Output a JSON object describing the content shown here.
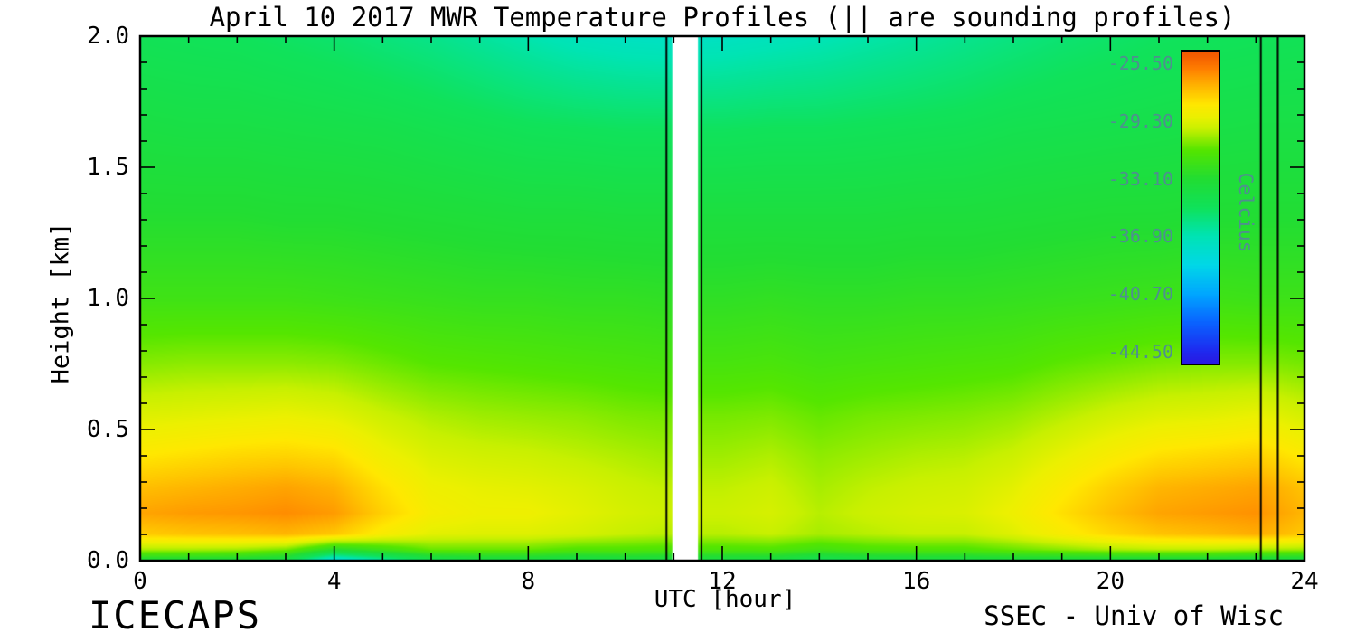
{
  "axes": {
    "x_tick_labels": [
      "0",
      "4",
      "8",
      "12",
      "16",
      "20",
      "24"
    ],
    "x_tick_values": [
      0,
      4,
      8,
      12,
      16,
      20,
      24
    ],
    "x_minor_step": 1,
    "x_range": [
      0,
      24
    ],
    "y_tick_labels": [
      "0.0",
      "0.5",
      "1.0",
      "1.5",
      "2.0"
    ],
    "y_tick_values": [
      0,
      0.5,
      1.0,
      1.5,
      2.0
    ],
    "y_minor_step": 0.1,
    "y_range": [
      0,
      2
    ]
  },
  "colorbar": {
    "unit_label": "Celcius",
    "tick_labels": [
      "-25.50",
      "-29.30",
      "-33.10",
      "-36.90",
      "-40.70",
      "-44.50"
    ],
    "tick_values": [
      -25.5,
      -29.3,
      -33.1,
      -36.9,
      -40.7,
      -44.5
    ],
    "top_value": -24.7,
    "bottom_value": -45.3,
    "text_color": "#4f8f8f"
  },
  "annotations": {
    "footer_left": "ICECAPS",
    "footer_right": "SSEC - Univ of Wisc"
  },
  "sounding_lines_hours": [
    10.85,
    11.57,
    23.1,
    23.45
  ],
  "data_gap_hours": [
    10.97,
    11.5
  ],
  "colormap_stops": [
    [
      -46.5,
      "#3a00d0"
    ],
    [
      -44.5,
      "#1f2bf0"
    ],
    [
      -42.6,
      "#0a64ff"
    ],
    [
      -40.7,
      "#00a8ff"
    ],
    [
      -38.8,
      "#00d8e8"
    ],
    [
      -36.9,
      "#00e4b4"
    ],
    [
      -35.0,
      "#10e25a"
    ],
    [
      -33.1,
      "#22dd33"
    ],
    [
      -31.2,
      "#55e600"
    ],
    [
      -29.8,
      "#c8f000"
    ],
    [
      -29.0,
      "#ecf000"
    ],
    [
      -28.2,
      "#ffe800"
    ],
    [
      -27.3,
      "#ffc400"
    ],
    [
      -26.5,
      "#ffa000"
    ],
    [
      -25.8,
      "#ff7e00"
    ],
    [
      -25.0,
      "#f55f00"
    ],
    [
      -23.8,
      "#e54200"
    ]
  ],
  "chart_data": {
    "type": "heatmap",
    "title": "April 10 2017 MWR Temperature Profiles (|| are sounding profiles)",
    "xlabel": "UTC [hour]",
    "ylabel": "Height [km]",
    "units": "Celcius",
    "xlim": [
      0,
      24
    ],
    "ylim": [
      0,
      2
    ],
    "value_range": [
      -44.5,
      -25.5
    ],
    "x_hours": [
      0,
      1,
      2,
      3,
      4,
      5,
      6,
      7,
      8,
      9,
      10,
      11,
      12,
      13,
      14,
      15,
      16,
      17,
      18,
      19,
      20,
      21,
      22,
      23,
      24
    ],
    "heights_km": [
      0.0,
      0.04,
      0.1,
      0.18,
      0.28,
      0.4,
      0.55,
      0.75,
      1.0,
      1.3,
      1.65,
      2.0
    ],
    "temps_c": [
      [
        -33.5,
        -33.5,
        -33.6,
        -34.2,
        -38.5,
        -36.5,
        -34.5,
        -34.0,
        -34.0,
        -34.3,
        -34.0,
        -34.0,
        -34.0,
        -34.0,
        -34.8,
        -34.3,
        -34.0,
        -34.0,
        -33.8,
        -33.8,
        -33.8,
        -33.8,
        -33.8,
        -34.0,
        -34.0
      ],
      [
        -30.2,
        -30.2,
        -30.3,
        -30.8,
        -33.0,
        -32.0,
        -31.0,
        -31.0,
        -31.0,
        -31.4,
        -31.4,
        -31.5,
        -31.5,
        -31.4,
        -31.9,
        -31.5,
        -31.4,
        -31.4,
        -31.0,
        -30.6,
        -30.2,
        -30.0,
        -30.0,
        -30.2,
        -30.3
      ],
      [
        -27.5,
        -27.3,
        -27.2,
        -27.0,
        -27.4,
        -28.5,
        -29.2,
        -29.3,
        -29.3,
        -29.5,
        -29.8,
        -30.0,
        -30.0,
        -29.8,
        -30.2,
        -30.0,
        -29.8,
        -29.8,
        -29.3,
        -28.5,
        -27.8,
        -27.3,
        -27.1,
        -26.8,
        -27.4
      ],
      [
        -26.6,
        -26.4,
        -26.3,
        -26.1,
        -26.4,
        -27.6,
        -28.6,
        -28.9,
        -28.9,
        -29.2,
        -29.5,
        -29.7,
        -29.7,
        -29.5,
        -30.0,
        -29.7,
        -29.5,
        -29.4,
        -28.9,
        -28.0,
        -27.2,
        -26.6,
        -26.4,
        -26.2,
        -27.0
      ],
      [
        -27.2,
        -27.0,
        -26.8,
        -26.6,
        -26.9,
        -28.0,
        -28.9,
        -29.1,
        -29.2,
        -29.4,
        -29.7,
        -29.9,
        -29.9,
        -29.7,
        -30.2,
        -29.9,
        -29.7,
        -29.6,
        -29.2,
        -28.4,
        -27.6,
        -27.0,
        -26.8,
        -26.6,
        -27.3
      ],
      [
        -28.2,
        -28.0,
        -27.8,
        -27.7,
        -27.9,
        -28.8,
        -29.4,
        -29.6,
        -29.7,
        -29.9,
        -30.1,
        -30.3,
        -30.3,
        -30.1,
        -30.5,
        -30.3,
        -30.1,
        -30.0,
        -29.7,
        -29.1,
        -28.5,
        -28.0,
        -27.8,
        -27.6,
        -28.3
      ],
      [
        -29.3,
        -29.2,
        -29.1,
        -29.0,
        -29.2,
        -29.7,
        -30.1,
        -30.3,
        -30.4,
        -30.5,
        -30.7,
        -30.8,
        -30.8,
        -30.7,
        -31.0,
        -30.8,
        -30.7,
        -30.6,
        -30.4,
        -30.0,
        -29.6,
        -29.3,
        -29.2,
        -29.0,
        -29.5
      ],
      [
        -30.6,
        -30.5,
        -30.5,
        -30.5,
        -30.6,
        -30.9,
        -31.2,
        -31.3,
        -31.4,
        -31.5,
        -31.6,
        -31.7,
        -31.7,
        -31.6,
        -31.8,
        -31.7,
        -31.6,
        -31.5,
        -31.4,
        -31.1,
        -30.9,
        -30.7,
        -30.6,
        -30.6,
        -30.8
      ],
      [
        -32.0,
        -32.0,
        -32.0,
        -32.0,
        -32.1,
        -32.2,
        -32.3,
        -32.4,
        -32.4,
        -32.5,
        -32.5,
        -32.6,
        -32.6,
        -32.5,
        -32.6,
        -32.6,
        -32.5,
        -32.5,
        -32.4,
        -32.3,
        -32.2,
        -32.1,
        -32.0,
        -32.1,
        -32.1
      ],
      [
        -33.0,
        -33.0,
        -33.0,
        -33.1,
        -33.1,
        -33.2,
        -33.3,
        -33.4,
        -33.5,
        -33.5,
        -33.6,
        -33.6,
        -33.6,
        -33.6,
        -33.6,
        -33.6,
        -33.5,
        -33.5,
        -33.4,
        -33.3,
        -33.2,
        -33.2,
        -33.1,
        -33.1,
        -33.1
      ],
      [
        -33.9,
        -34.0,
        -34.0,
        -34.1,
        -34.2,
        -34.3,
        -34.5,
        -34.7,
        -34.9,
        -35.0,
        -35.1,
        -35.1,
        -35.1,
        -35.0,
        -35.0,
        -34.9,
        -34.8,
        -34.7,
        -34.5,
        -34.4,
        -34.3,
        -34.2,
        -34.1,
        -34.0,
        -34.0
      ],
      [
        -34.8,
        -34.9,
        -35.0,
        -35.2,
        -35.4,
        -35.7,
        -36.0,
        -36.4,
        -36.8,
        -37.2,
        -37.4,
        -37.5,
        -37.4,
        -37.2,
        -37.0,
        -36.7,
        -36.4,
        -36.1,
        -35.8,
        -35.5,
        -35.3,
        -35.1,
        -35.0,
        -34.9,
        -34.8
      ]
    ]
  }
}
